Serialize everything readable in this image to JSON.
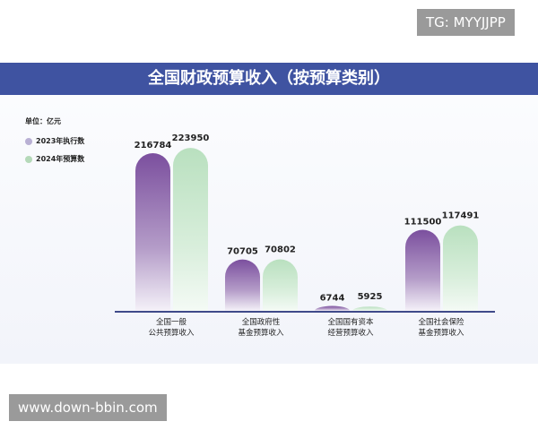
{
  "chart_data": {
    "type": "bar",
    "title": "全国财政预算收入（按预算类别）",
    "unit_label": "单位：亿元",
    "categories": [
      [
        "全国一般",
        "公共预算收入"
      ],
      [
        "全国政府性",
        "基金预算收入"
      ],
      [
        "全国国有资本",
        "经营预算收入"
      ],
      [
        "全国社会保险",
        "基金预算收入"
      ]
    ],
    "series": [
      {
        "name": "2023年执行数",
        "values": [
          216784,
          70705,
          6744,
          111500
        ],
        "color": "#7b4f9e"
      },
      {
        "name": "2024年预算数",
        "values": [
          223950,
          70802,
          5925,
          117491
        ],
        "color": "#b9e0bf"
      }
    ],
    "legend_position": "top-left",
    "grid": false
  },
  "watermarks": {
    "top_right": "TG: MYYJJPP",
    "bottom_left": "www.down-bbin.com"
  }
}
